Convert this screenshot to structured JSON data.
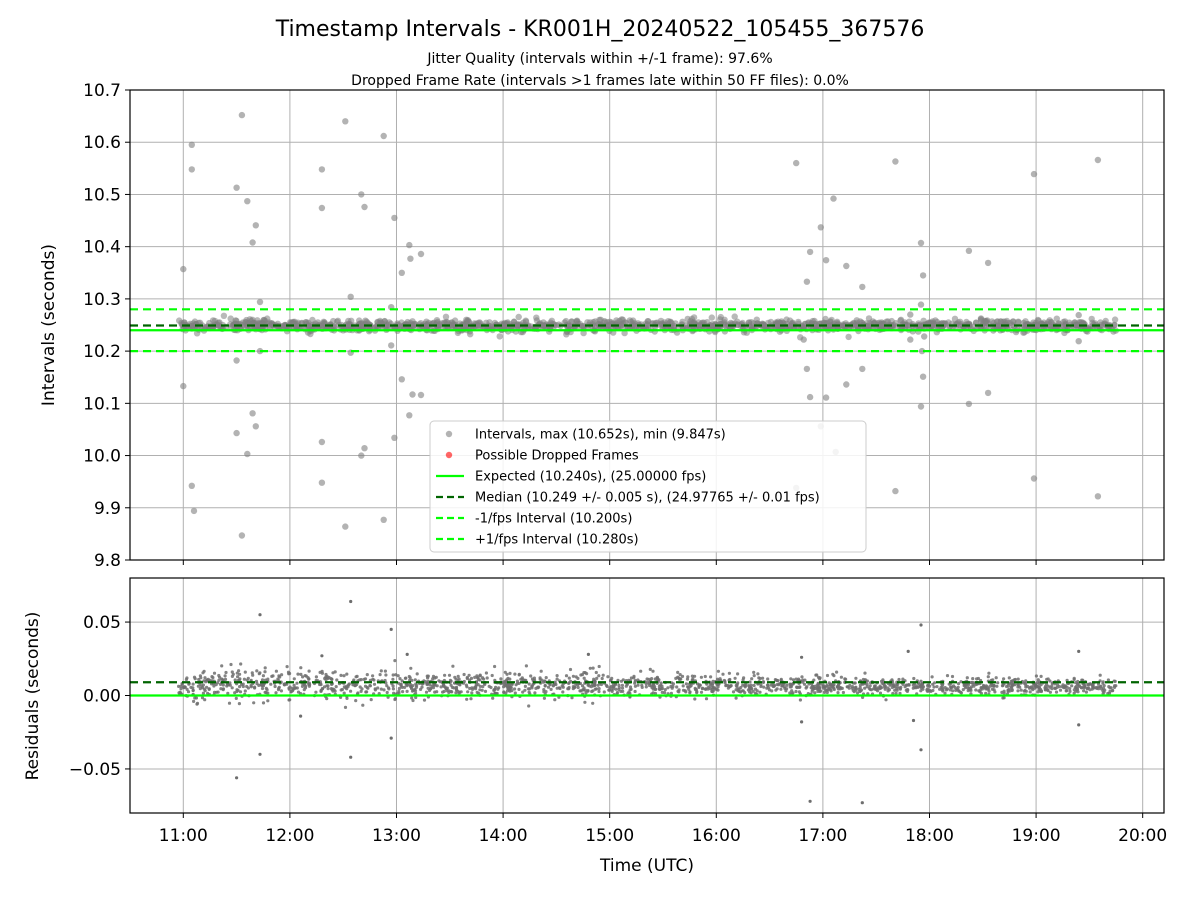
{
  "figure": {
    "title": "Timestamp Intervals - KR001H_20240522_105455_367576",
    "subtitle_1": "Jitter Quality (intervals within +/-1 frame): 97.6%",
    "subtitle_2": "Dropped Frame Rate (intervals >1 frames late within 50 FF files): 0.0%"
  },
  "colors": {
    "scatter": "#808080",
    "residual": "#6e6e6e",
    "dropped": "#ff0000",
    "expected": "#00ff00",
    "median": "#006400",
    "grid": "#b0b0b0"
  },
  "chart_data": [
    {
      "type": "scatter",
      "ylabel": "Intervals (seconds)",
      "xlabel": "",
      "xlim_hours": [
        10.5,
        20.2
      ],
      "ylim": [
        9.8,
        10.7
      ],
      "y_ticks": [
        "9.8",
        "9.9",
        "10.0",
        "10.1",
        "10.2",
        "10.3",
        "10.4",
        "10.5",
        "10.6",
        "10.7"
      ],
      "grid": true,
      "legend_location": "lower-center",
      "reference_lines": {
        "expected": 10.24,
        "median": 10.249,
        "minus_fps": 10.2,
        "plus_fps": 10.28
      },
      "legend": [
        {
          "label": "Intervals, max (10.652s), min (9.847s)",
          "marker": "dot",
          "color": "#808080"
        },
        {
          "label": "Possible Dropped Frames",
          "marker": "dot",
          "color": "#ff0000"
        },
        {
          "label": "Expected (10.240s), (25.00000 fps)",
          "marker": "solid",
          "color": "#00ff00"
        },
        {
          "label": "Median (10.249 +/- 0.005 s), (24.97765 +/- 0.01 fps)",
          "marker": "dashed",
          "color": "#006400"
        },
        {
          "label": "-1/fps Interval (10.200s)",
          "marker": "dashed",
          "color": "#00ff00"
        },
        {
          "label": "+1/fps Interval (10.280s)",
          "marker": "dashed",
          "color": "#00ff00"
        }
      ],
      "dense_band": {
        "x_range": [
          10.95,
          19.75
        ],
        "y_center": 10.249,
        "y_spread": 0.012
      },
      "outliers": [
        {
          "x": 11.0,
          "y": 10.357
        },
        {
          "x": 11.0,
          "y": 10.133
        },
        {
          "x": 11.08,
          "y": 10.595
        },
        {
          "x": 11.08,
          "y": 10.548
        },
        {
          "x": 11.08,
          "y": 9.942
        },
        {
          "x": 11.1,
          "y": 9.894
        },
        {
          "x": 11.5,
          "y": 10.513
        },
        {
          "x": 11.5,
          "y": 10.182
        },
        {
          "x": 11.5,
          "y": 10.043
        },
        {
          "x": 11.55,
          "y": 10.652
        },
        {
          "x": 11.55,
          "y": 9.847
        },
        {
          "x": 11.6,
          "y": 10.487
        },
        {
          "x": 11.6,
          "y": 10.003
        },
        {
          "x": 11.65,
          "y": 10.408
        },
        {
          "x": 11.65,
          "y": 10.081
        },
        {
          "x": 11.68,
          "y": 10.441
        },
        {
          "x": 11.68,
          "y": 10.056
        },
        {
          "x": 11.72,
          "y": 10.294
        },
        {
          "x": 11.72,
          "y": 10.2
        },
        {
          "x": 12.3,
          "y": 10.548
        },
        {
          "x": 12.3,
          "y": 10.474
        },
        {
          "x": 12.3,
          "y": 10.026
        },
        {
          "x": 12.3,
          "y": 9.948
        },
        {
          "x": 12.52,
          "y": 10.64
        },
        {
          "x": 12.52,
          "y": 9.864
        },
        {
          "x": 12.57,
          "y": 10.304
        },
        {
          "x": 12.57,
          "y": 10.197
        },
        {
          "x": 12.67,
          "y": 10.5
        },
        {
          "x": 12.67,
          "y": 10.0
        },
        {
          "x": 12.7,
          "y": 10.476
        },
        {
          "x": 12.7,
          "y": 10.014
        },
        {
          "x": 12.88,
          "y": 10.612
        },
        {
          "x": 12.88,
          "y": 9.877
        },
        {
          "x": 12.95,
          "y": 10.284
        },
        {
          "x": 12.95,
          "y": 10.211
        },
        {
          "x": 12.98,
          "y": 10.455
        },
        {
          "x": 12.98,
          "y": 10.034
        },
        {
          "x": 13.05,
          "y": 10.35
        },
        {
          "x": 13.05,
          "y": 10.146
        },
        {
          "x": 13.12,
          "y": 10.403
        },
        {
          "x": 13.12,
          "y": 10.077
        },
        {
          "x": 13.13,
          "y": 10.377
        },
        {
          "x": 13.15,
          "y": 10.117
        },
        {
          "x": 13.23,
          "y": 10.386
        },
        {
          "x": 13.23,
          "y": 10.116
        },
        {
          "x": 16.75,
          "y": 10.56
        },
        {
          "x": 16.75,
          "y": 9.938
        },
        {
          "x": 16.82,
          "y": 10.222
        },
        {
          "x": 16.85,
          "y": 10.333
        },
        {
          "x": 16.85,
          "y": 10.166
        },
        {
          "x": 16.88,
          "y": 10.39
        },
        {
          "x": 16.88,
          "y": 10.112
        },
        {
          "x": 16.98,
          "y": 10.437
        },
        {
          "x": 16.98,
          "y": 10.056
        },
        {
          "x": 17.03,
          "y": 10.374
        },
        {
          "x": 17.03,
          "y": 10.111
        },
        {
          "x": 17.1,
          "y": 10.492
        },
        {
          "x": 17.12,
          "y": 10.007
        },
        {
          "x": 17.22,
          "y": 10.363
        },
        {
          "x": 17.22,
          "y": 10.136
        },
        {
          "x": 17.37,
          "y": 10.323
        },
        {
          "x": 17.37,
          "y": 10.166
        },
        {
          "x": 17.68,
          "y": 10.563
        },
        {
          "x": 17.68,
          "y": 9.932
        },
        {
          "x": 17.82,
          "y": 10.27
        },
        {
          "x": 17.82,
          "y": 10.222
        },
        {
          "x": 17.92,
          "y": 10.407
        },
        {
          "x": 17.92,
          "y": 10.289
        },
        {
          "x": 17.94,
          "y": 10.345
        },
        {
          "x": 17.94,
          "y": 10.151
        },
        {
          "x": 17.92,
          "y": 10.094
        },
        {
          "x": 17.95,
          "y": 10.228
        },
        {
          "x": 17.93,
          "y": 10.2
        },
        {
          "x": 18.37,
          "y": 10.392
        },
        {
          "x": 18.37,
          "y": 10.099
        },
        {
          "x": 18.55,
          "y": 10.369
        },
        {
          "x": 18.55,
          "y": 10.12
        },
        {
          "x": 18.98,
          "y": 10.539
        },
        {
          "x": 18.98,
          "y": 9.956
        },
        {
          "x": 19.4,
          "y": 10.269
        },
        {
          "x": 19.4,
          "y": 10.219
        },
        {
          "x": 19.58,
          "y": 10.566
        },
        {
          "x": 19.58,
          "y": 9.922
        }
      ]
    },
    {
      "type": "scatter",
      "ylabel": "Residuals (seconds)",
      "xlabel": "Time (UTC)",
      "xlim_hours": [
        10.5,
        20.2
      ],
      "ylim": [
        -0.08,
        0.08
      ],
      "y_ticks": [
        "−0.05",
        "0.00",
        "0.05"
      ],
      "x_ticks": [
        "11:00",
        "12:00",
        "13:00",
        "14:00",
        "15:00",
        "16:00",
        "17:00",
        "18:00",
        "19:00",
        "20:00"
      ],
      "grid": true,
      "reference_lines": {
        "zero": 0.0,
        "median": 0.009
      },
      "dense_band": {
        "x_range": [
          10.95,
          19.75
        ],
        "y_center_start": 0.008,
        "y_center_end": 0.006,
        "y_spread": 0.012
      },
      "outliers": [
        {
          "x": 11.72,
          "y": 0.055
        },
        {
          "x": 11.72,
          "y": -0.04
        },
        {
          "x": 11.5,
          "y": -0.056
        },
        {
          "x": 12.57,
          "y": 0.064
        },
        {
          "x": 12.57,
          "y": -0.042
        },
        {
          "x": 12.95,
          "y": 0.045
        },
        {
          "x": 12.95,
          "y": -0.029
        },
        {
          "x": 16.88,
          "y": -0.072
        },
        {
          "x": 17.37,
          "y": -0.073
        },
        {
          "x": 17.92,
          "y": 0.048
        },
        {
          "x": 17.92,
          "y": -0.037
        },
        {
          "x": 19.4,
          "y": 0.03
        },
        {
          "x": 19.4,
          "y": -0.02
        },
        {
          "x": 17.85,
          "y": -0.017
        },
        {
          "x": 16.8,
          "y": 0.026
        },
        {
          "x": 16.8,
          "y": -0.018
        },
        {
          "x": 17.8,
          "y": 0.03
        },
        {
          "x": 13.1,
          "y": 0.028
        },
        {
          "x": 12.3,
          "y": 0.027
        },
        {
          "x": 14.8,
          "y": 0.028
        },
        {
          "x": 12.1,
          "y": -0.014
        }
      ]
    }
  ]
}
